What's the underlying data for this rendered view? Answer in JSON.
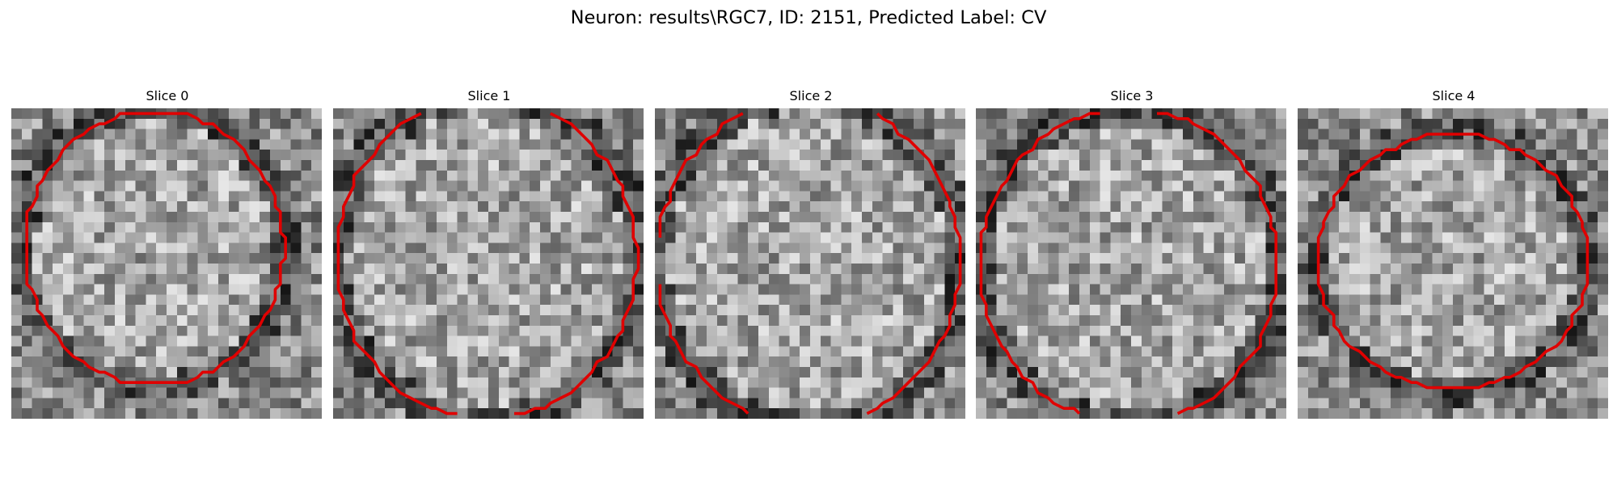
{
  "figure": {
    "suptitle": "Neuron: results\\RGC7, ID: 2151, Predicted Label: CV",
    "contour_color": "#e00000",
    "panels": [
      {
        "title": "Slice 0"
      },
      {
        "title": "Slice 1"
      },
      {
        "title": "Slice 2"
      },
      {
        "title": "Slice 3"
      },
      {
        "title": "Slice 4"
      }
    ]
  }
}
